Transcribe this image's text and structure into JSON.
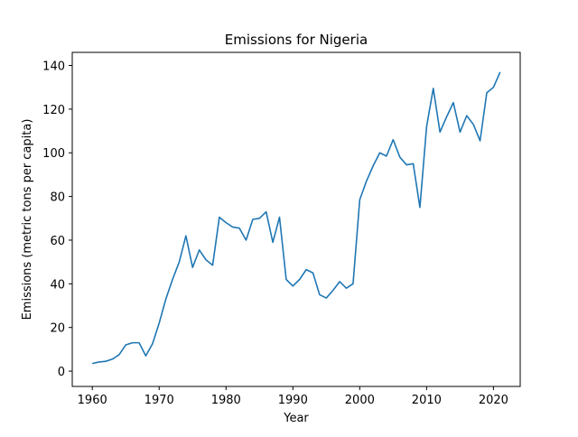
{
  "chart_data": {
    "type": "line",
    "title": "Emissions for Nigeria",
    "xlabel": "Year",
    "ylabel": "Emissions (metric tons per capita)",
    "xlim": [
      1957,
      2024
    ],
    "ylim": [
      -7,
      146
    ],
    "xticks": [
      1960,
      1970,
      1980,
      1990,
      2000,
      2010,
      2020
    ],
    "yticks": [
      0,
      20,
      40,
      60,
      80,
      100,
      120,
      140
    ],
    "grid": false,
    "legend": false,
    "line_color": "#1f77b4",
    "series": [
      {
        "x": [
          1960,
          1961,
          1962,
          1963,
          1964,
          1965,
          1966,
          1967,
          1968,
          1969,
          1970,
          1971,
          1972,
          1973,
          1974,
          1975,
          1976,
          1977,
          1978,
          1979,
          1980,
          1981,
          1982,
          1983,
          1984,
          1985,
          1986,
          1987,
          1988,
          1989,
          1990,
          1991,
          1992,
          1993,
          1994,
          1995,
          1996,
          1997,
          1998,
          1999,
          2000,
          2001,
          2002,
          2003,
          2004,
          2005,
          2006,
          2007,
          2008,
          2009,
          2010,
          2011,
          2012,
          2013,
          2014,
          2015,
          2016,
          2017,
          2018,
          2019,
          2020,
          2021
        ],
        "values": [
          3.5,
          4.2,
          4.5,
          5.5,
          7.5,
          12,
          13,
          13,
          7,
          12.5,
          22,
          33,
          42,
          50,
          62,
          47.5,
          55.5,
          51,
          48.5,
          70.5,
          68,
          66,
          65.5,
          60,
          69.5,
          70,
          73,
          59,
          70.5,
          42,
          39,
          42,
          46.5,
          45,
          35,
          33.5,
          37,
          41,
          38,
          40,
          78.5,
          87,
          94,
          100,
          98.5,
          106,
          98,
          94.5,
          95,
          75,
          112,
          129.5,
          109.5,
          116.5,
          123,
          109.5,
          117,
          113,
          105.5,
          127.5,
          130,
          137
        ]
      }
    ]
  }
}
